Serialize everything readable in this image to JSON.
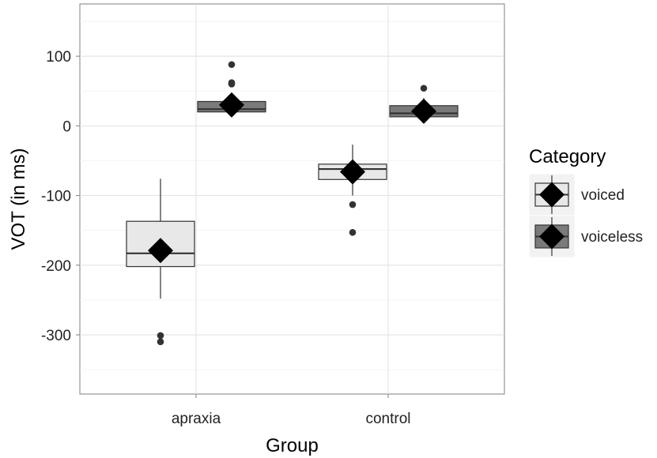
{
  "chart_data": {
    "type": "boxplot",
    "title": "",
    "xlabel": "Group",
    "ylabel": "VOT (in ms)",
    "categories": [
      "apraxia",
      "control"
    ],
    "ylim": [
      -385,
      175
    ],
    "yticks": [
      100,
      0,
      -100,
      -200,
      -300
    ],
    "ytick_labels": [
      "100",
      "0",
      "-100",
      "-200",
      "-300"
    ],
    "grid": true,
    "legend": {
      "title": "Category",
      "position": "right",
      "entries": [
        "voiced",
        "voiceless"
      ]
    },
    "series": [
      {
        "name": "voiced",
        "fill": "#e8e8e8",
        "boxes": [
          {
            "category": "apraxia",
            "whisker_low": -248,
            "q1": -202,
            "median": -183,
            "q3": -137,
            "whisker_high": -76,
            "mean": -179,
            "outliers": [
              -301,
              -310
            ]
          },
          {
            "category": "control",
            "whisker_low": -100,
            "q1": -77,
            "median": -62,
            "q3": -55,
            "whisker_high": -27,
            "mean": -66,
            "outliers": [
              -113,
              -153
            ]
          }
        ]
      },
      {
        "name": "voiceless",
        "fill": "#7a7a7a",
        "boxes": [
          {
            "category": "apraxia",
            "whisker_low": 20,
            "q1": 20,
            "median": 24,
            "q3": 35,
            "whisker_high": 45,
            "mean": 30,
            "outliers": [
              88,
              60,
              62
            ]
          },
          {
            "category": "control",
            "whisker_low": 10,
            "q1": 13,
            "median": 18,
            "q3": 29,
            "whisker_high": 40,
            "mean": 21,
            "outliers": [
              54
            ]
          }
        ]
      }
    ]
  }
}
